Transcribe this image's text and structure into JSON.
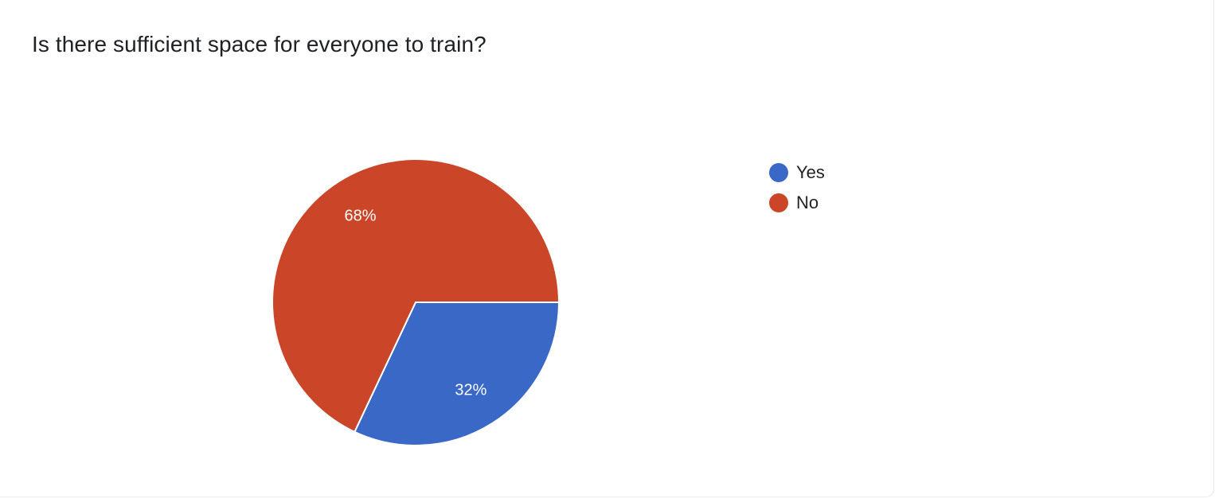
{
  "chart_data": {
    "type": "pie",
    "title": "Is there sufficient space for everyone to train?",
    "categories": [
      "Yes",
      "No"
    ],
    "values": [
      32,
      68
    ],
    "labels": [
      "32%",
      "68%"
    ],
    "colors": [
      "#3a68c6",
      "#cb4628"
    ],
    "legend_position": "right"
  }
}
